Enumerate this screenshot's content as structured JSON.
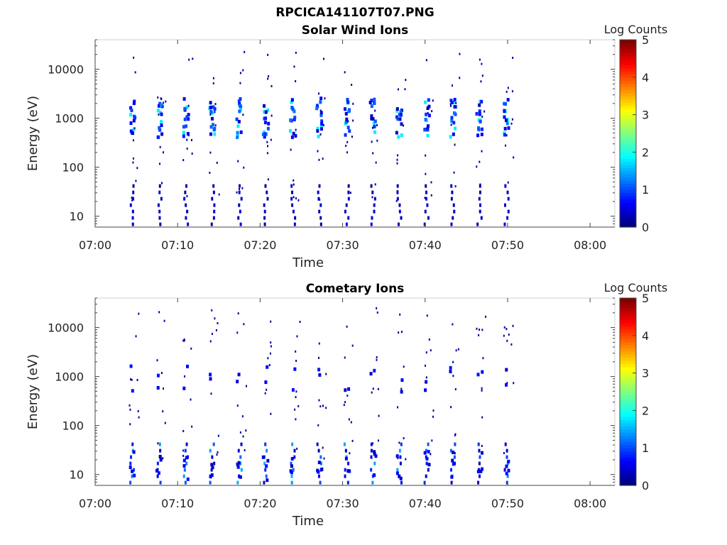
{
  "figure_title": "RPCICA141107T07.PNG",
  "chart_data": [
    {
      "type": "heatmap",
      "title": "Solar Wind Ions",
      "xlabel": "Time",
      "ylabel": "Energy (eV)",
      "xlim": [
        "07:00",
        "08:03"
      ],
      "ylim": [
        6,
        40000
      ],
      "yscale": "log",
      "x_ticks": [
        "07:00",
        "07:10",
        "07:20",
        "07:30",
        "07:40",
        "07:50",
        "08:00"
      ],
      "y_ticks": [
        "10",
        "100",
        "1000",
        "10000"
      ],
      "colorbar": {
        "label": "Log Counts",
        "range": [
          0,
          5
        ],
        "ticks": [
          "0",
          "1",
          "2",
          "3",
          "4",
          "5"
        ],
        "colormap": "jet"
      },
      "sweep_times_min": [
        4.5,
        7.8,
        11.0,
        14.2,
        17.5,
        20.7,
        24.0,
        27.2,
        30.5,
        33.7,
        36.9,
        40.2,
        43.4,
        46.6,
        49.9
      ],
      "peak_energy_eV": 1000,
      "peak_log_counts": 1.8,
      "grid": false
    },
    {
      "type": "heatmap",
      "title": "Cometary Ions",
      "xlabel": "Time",
      "ylabel": "Energy (eV)",
      "xlim": [
        "07:00",
        "08:03"
      ],
      "ylim": [
        6,
        40000
      ],
      "yscale": "log",
      "x_ticks": [
        "07:00",
        "07:10",
        "07:20",
        "07:30",
        "07:40",
        "07:50",
        "08:00"
      ],
      "y_ticks": [
        "10",
        "100",
        "1000",
        "10000"
      ],
      "colorbar": {
        "label": "Log Counts",
        "range": [
          0,
          5
        ],
        "ticks": [
          "0",
          "1",
          "2",
          "3",
          "4",
          "5"
        ],
        "colormap": "jet"
      },
      "sweep_times_min": [
        4.5,
        7.8,
        11.0,
        14.2,
        17.5,
        20.7,
        24.0,
        27.2,
        30.5,
        33.7,
        36.9,
        40.2,
        43.4,
        46.6,
        49.9
      ],
      "peak_energy_eV": 15,
      "peak_log_counts": 1.6,
      "grid": false
    }
  ]
}
